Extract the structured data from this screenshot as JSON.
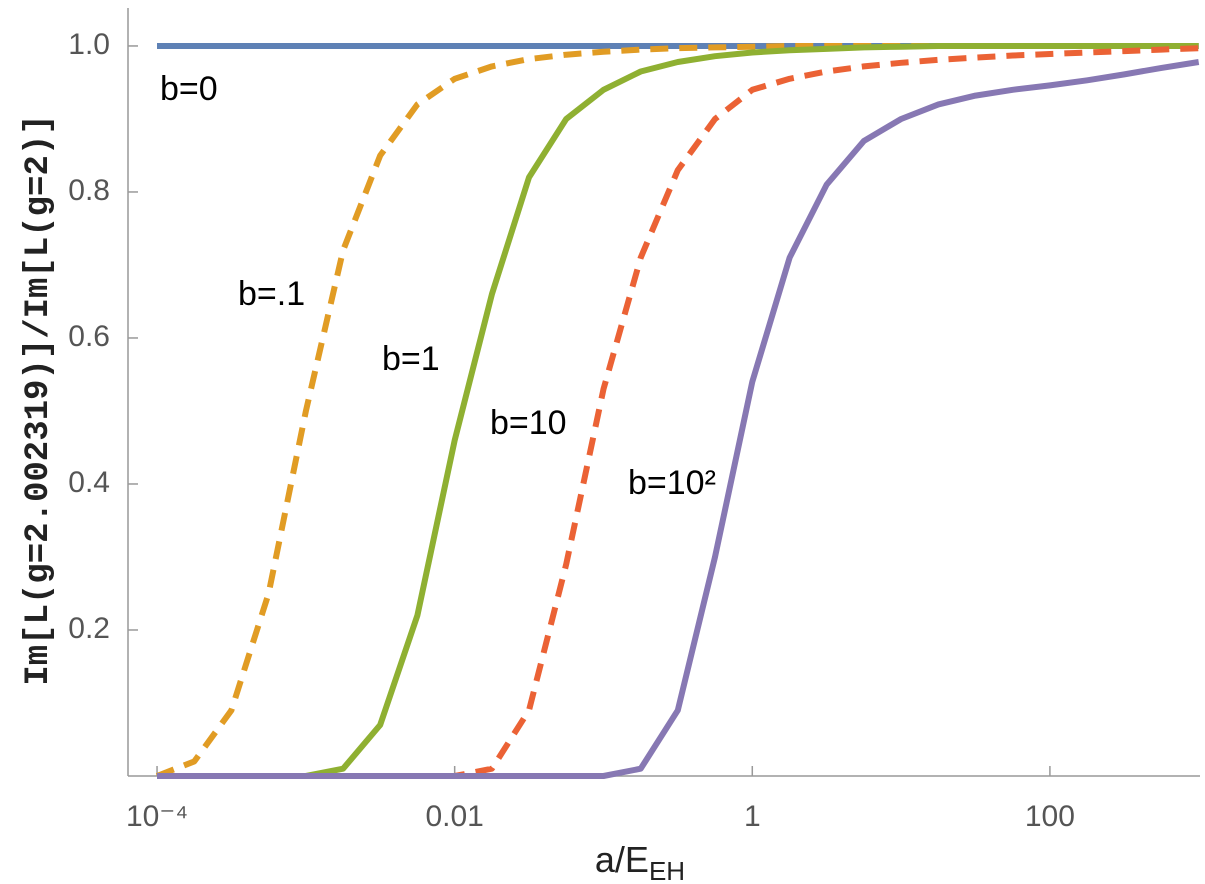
{
  "chart_data": {
    "type": "line",
    "xlabel": "a/E",
    "xlabel_sub": "EH",
    "ylabel": "Im[L(g=2.002319)]/Im[L(g=2)]",
    "xscale": "log",
    "xlim": [
      6.38e-05,
      1020
    ],
    "ylim": [
      0,
      1.052
    ],
    "xticks": [
      {
        "value": 0.0001,
        "label": "10⁻⁴"
      },
      0.01,
      1,
      100
    ],
    "yticks": [
      0.2,
      0.4,
      0.6,
      0.8,
      {
        "value": 1,
        "label": "1.0"
      }
    ],
    "x": [
      0.0001,
      0.000178,
      0.000316,
      0.000562,
      0.001,
      0.00178,
      0.00316,
      0.00562,
      0.01,
      0.0178,
      0.0316,
      0.0562,
      0.1,
      0.178,
      0.316,
      0.562,
      1,
      1.78,
      3.16,
      5.62,
      10,
      17.8,
      31.6,
      56.2,
      100,
      178,
      316,
      562,
      1000
    ],
    "series": [
      {
        "name": "b=0",
        "color": "#5e81b5",
        "dashed": false,
        "values": [
          1,
          1,
          1,
          1,
          1,
          1,
          1,
          1,
          1,
          1,
          1,
          1,
          1,
          1,
          1,
          1,
          1,
          1,
          1,
          1,
          1,
          1,
          1,
          1,
          1,
          1,
          1,
          1,
          1
        ]
      },
      {
        "name": "b=.1",
        "color": "#e19c24",
        "dashed": true,
        "values": [
          0,
          0.02,
          0.09,
          0.25,
          0.5,
          0.72,
          0.85,
          0.92,
          0.955,
          0.972,
          0.982,
          0.988,
          0.992,
          0.995,
          0.997,
          0.998,
          0.999,
          1,
          1,
          1,
          1,
          1,
          1,
          1,
          1,
          1,
          1,
          1,
          1
        ]
      },
      {
        "name": "b=1",
        "color": "#8fb032",
        "dashed": false,
        "values": [
          0,
          0,
          0,
          0,
          0,
          0.01,
          0.07,
          0.22,
          0.46,
          0.66,
          0.82,
          0.9,
          0.94,
          0.965,
          0.978,
          0.986,
          0.991,
          0.994,
          0.996,
          0.998,
          0.999,
          1,
          1,
          1,
          1,
          1,
          1,
          1,
          1
        ]
      },
      {
        "name": "b=10",
        "color": "#eb6235",
        "dashed": true,
        "values": [
          0,
          0,
          0,
          0,
          0,
          0,
          0,
          0,
          0,
          0.01,
          0.09,
          0.29,
          0.53,
          0.71,
          0.83,
          0.9,
          0.94,
          0.955,
          0.965,
          0.972,
          0.977,
          0.981,
          0.984,
          0.987,
          0.989,
          0.991,
          0.993,
          0.995,
          0.997
        ]
      },
      {
        "name": "b=10²",
        "color": "#8778b3",
        "dashed": false,
        "values": [
          0,
          0,
          0,
          0,
          0,
          0,
          0,
          0,
          0,
          0,
          0,
          0,
          0,
          0.01,
          0.09,
          0.3,
          0.54,
          0.71,
          0.81,
          0.87,
          0.9,
          0.92,
          0.932,
          0.94,
          0.946,
          0.953,
          0.961,
          0.97,
          0.978
        ]
      }
    ]
  }
}
